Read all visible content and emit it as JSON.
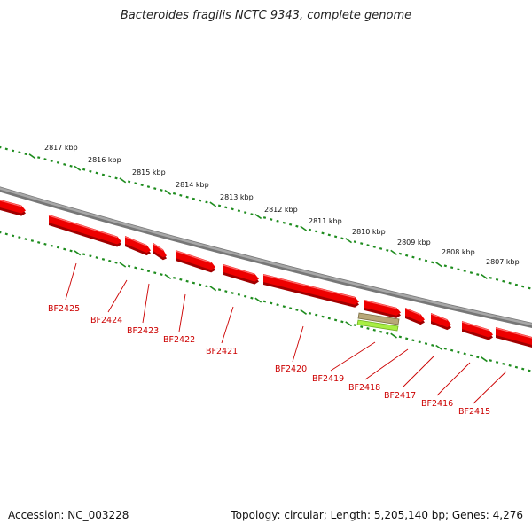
{
  "title": "Bacteroides fragilis NCTC 9343, complete genome",
  "footer": {
    "accession": "Accession: NC_003228",
    "summary": "Topology: circular; Length: 5,205,140 bp; Genes: 4,276"
  },
  "scale_labels": [
    "2817 kbp",
    "2816 kbp",
    "2815 kbp",
    "2814 kbp",
    "2813 kbp",
    "2812 kbp",
    "2811 kbp",
    "2810 kbp",
    "2809 kbp",
    "2808 kbp",
    "2807 kbp"
  ],
  "genes": [
    "BF2425",
    "BF2424",
    "BF2423",
    "BF2422",
    "BF2421",
    "BF2420",
    "BF2419",
    "BF2418",
    "BF2417",
    "BF2416",
    "BF2415"
  ],
  "colors": {
    "gene": "#ee0000",
    "gene_dark": "#a00000",
    "backbone": "#8a8a8a",
    "tick": "#1e8c1e",
    "label": "#cc0000",
    "feature_tan": "#b8a878",
    "feature_green": "#a8ee44"
  }
}
